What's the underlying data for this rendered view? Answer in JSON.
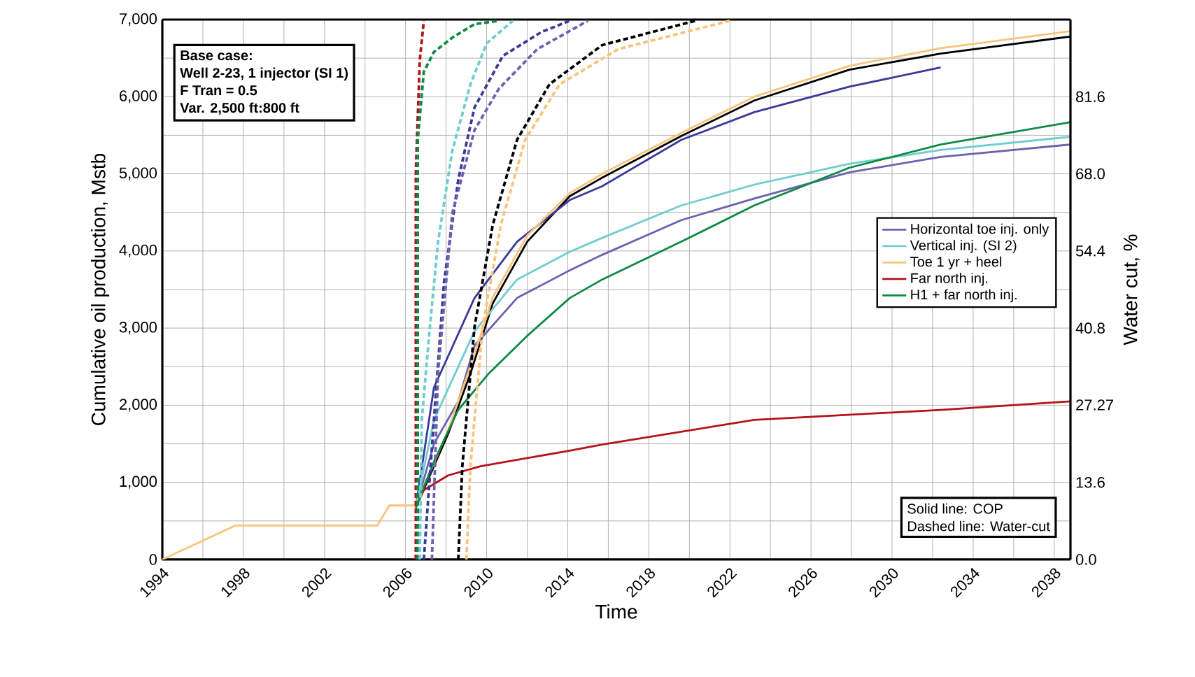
{
  "chart_data": {
    "type": "line",
    "xlabel": "Time",
    "ylabel": "Cumulative oil production, Mstb",
    "y2label": "Water cut, %",
    "xlim": [
      1994,
      2038.8
    ],
    "xticks": [
      1994,
      1998,
      2002,
      2006,
      2010,
      2014,
      2018,
      2022,
      2026,
      2030,
      2034,
      2038
    ],
    "ylim": [
      0,
      7000
    ],
    "yticks": [
      0,
      {
        "value": 1000,
        "label": "1,000"
      },
      {
        "value": 2000,
        "label": "2,000"
      },
      {
        "value": 3000,
        "label": "3,000"
      },
      {
        "value": 4000,
        "label": "4,000"
      },
      {
        "value": 5000,
        "label": "5,000"
      },
      {
        "value": 6000,
        "label": "6,000"
      },
      {
        "value": 7000,
        "label": "7,000"
      }
    ],
    "y2lim": [
      0,
      95.2
    ],
    "y2ticks": [
      {
        "value": 0,
        "label": "0.0"
      },
      13.6,
      27.27,
      40.8,
      54.4,
      {
        "value": 68,
        "label": "68.0"
      },
      81.6
    ],
    "grid": true,
    "legend": "right",
    "marker": "none",
    "annotations": [
      "Base case:",
      "Well 2-23, 1 injector (SI 1)",
      "F Tran = 0.5",
      "Var. 2,500 ft:800 ft",
      "Solid line: COP",
      "Dashed line: Water-cut"
    ],
    "series": [
      {
        "color": "#000000",
        "line_style": "solid",
        "x": [
          2006.5,
          2008.1,
          2009.2,
          2010.3,
          2012,
          2014.1,
          2015.7,
          2019.6,
          2023.2,
          2027.9,
          2032.4,
          2038.8
        ],
        "values": [
          670,
          1630,
          2410,
          3320,
          4120,
          4710,
          4950,
          5490,
          5950,
          6350,
          6560,
          6780
        ]
      },
      {
        "color": "#3a3a98",
        "line_style": "solid",
        "x": [
          2006.5,
          2007.4,
          2009.4,
          2011.5,
          2014.1,
          2015.7,
          2019.6,
          2023.2,
          2027.9,
          2032.4
        ],
        "values": [
          670,
          2230,
          3390,
          4120,
          4660,
          4840,
          5440,
          5800,
          6130,
          6380
        ]
      },
      {
        "name": "Horizontal toe inj. only",
        "color": "#6b62b0",
        "line_style": "solid",
        "x": [
          2006.5,
          2007.4,
          2008.6,
          2009.4,
          2011.5,
          2014.1,
          2015.7,
          2019.6,
          2023.2,
          2027.9,
          2032.4,
          2038.8
        ],
        "values": [
          670,
          1500,
          2050,
          2770,
          3390,
          3750,
          3950,
          4400,
          4680,
          5020,
          5220,
          5380
        ]
      },
      {
        "name": "Vertical inj. (SI 2)",
        "color": "#6fcdd0",
        "line_style": "solid",
        "x": [
          2006.5,
          2007.4,
          2009.4,
          2011.5,
          2014.1,
          2015.7,
          2019.6,
          2023.2,
          2027.9,
          2032.4,
          2038.8
        ],
        "values": [
          670,
          1810,
          2960,
          3630,
          3990,
          4170,
          4590,
          4860,
          5130,
          5310,
          5480
        ]
      },
      {
        "name": "Toe 1 yr + heel",
        "color": "#f9c47a",
        "line_style": "solid",
        "x": [
          1994,
          1997.6,
          2004.6,
          2005.2,
          2006.5,
          2008.1,
          2009.2,
          2010.3,
          2012,
          2014.1,
          2015.7,
          2019.6,
          2023.2,
          2027.9,
          2032.4,
          2038.8
        ],
        "values": [
          0,
          440,
          440,
          700,
          700,
          1680,
          2500,
          3400,
          4200,
          4750,
          5000,
          5530,
          6000,
          6400,
          6630,
          6850
        ]
      },
      {
        "name": "Far north inj.",
        "color": "#b5121b",
        "line_style": "solid",
        "x": [
          2006.5,
          2006.9,
          2008.1,
          2009.7,
          2014.1,
          2015.7,
          2023.2,
          2032.4,
          2038.8
        ],
        "values": [
          670,
          900,
          1090,
          1210,
          1410,
          1490,
          1810,
          1940,
          2050
        ]
      },
      {
        "name": "H1 + far north inj.",
        "color": "#0e8a45",
        "line_style": "solid",
        "x": [
          2006.5,
          2007.4,
          2008.6,
          2010.1,
          2012,
          2014.1,
          2015.7,
          2019.6,
          2023.2,
          2027.9,
          2032.4,
          2038.8
        ],
        "values": [
          670,
          1270,
          1940,
          2410,
          2900,
          3390,
          3630,
          4120,
          4590,
          5080,
          5380,
          5670
        ]
      },
      {
        "color": "#b5121b",
        "line_style": "dashed",
        "axis": "y2",
        "x": [
          2006.5,
          2006.5,
          2006.7,
          2006.9
        ],
        "values": [
          0,
          67.8,
          88,
          95
        ]
      },
      {
        "color": "#0e8a45",
        "line_style": "dashed",
        "axis": "y2",
        "x": [
          2006.6,
          2006.6,
          2006.9,
          2007.4,
          2008.3,
          2009.4,
          2010.6
        ],
        "values": [
          0,
          74,
          86,
          89.5,
          92,
          94.4,
          95
        ]
      },
      {
        "color": "#6fcdd0",
        "line_style": "dashed",
        "axis": "y2",
        "x": [
          2006.7,
          2006.8,
          2007.2,
          2007.6,
          2008.3,
          2009.2,
          2010,
          2011.3
        ],
        "values": [
          0,
          24.7,
          41,
          56,
          72,
          83.8,
          91,
          95
        ]
      },
      {
        "color": "#3a3a98",
        "line_style": "dashed",
        "axis": "y2",
        "x": [
          2006.9,
          2007.4,
          2007.9,
          2008.6,
          2009.4,
          2010.8,
          2012.7,
          2014.1
        ],
        "values": [
          0,
          24.7,
          49,
          67,
          79.7,
          88.8,
          93,
          95
        ]
      },
      {
        "color": "#6b62b0",
        "line_style": "dashed",
        "axis": "y2",
        "x": [
          2007.3,
          2007.6,
          2008.3,
          2009.4,
          2010.6,
          2012.5,
          2015
        ],
        "values": [
          0,
          32.8,
          61,
          75.7,
          83,
          90,
          95
        ]
      },
      {
        "color": "#000000",
        "line_style": "dashed",
        "axis": "y2",
        "x": [
          2008.6,
          2008.8,
          2009.4,
          2010.3,
          2011.5,
          2013.1,
          2015.7,
          2020.3
        ],
        "values": [
          0,
          16.5,
          41,
          59,
          74,
          83.8,
          90.7,
          95
        ]
      },
      {
        "color": "#f9c47a",
        "line_style": "dashed",
        "axis": "y2",
        "x": [
          2009.0,
          2009.2,
          2009.8,
          2010.7,
          2011.9,
          2013.6,
          2016.5,
          2022
        ],
        "values": [
          0,
          16.5,
          41,
          59,
          74,
          83.8,
          90,
          95
        ]
      }
    ]
  }
}
